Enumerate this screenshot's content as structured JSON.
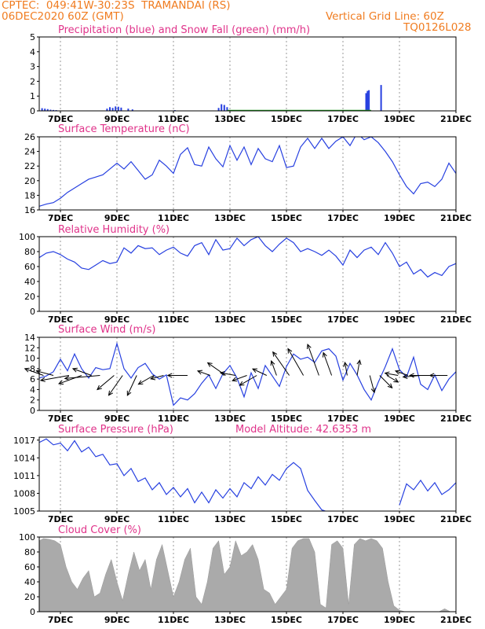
{
  "header": {
    "line1_left": "CPTEC:  049:41W-30:23S  TRAMANDAI (RS)",
    "line2_left": "06DEC2020 60Z (GMT)",
    "line2_right": "Vertical Grid Line: 60Z",
    "line3_right": "TQ0126L028"
  },
  "colors": {
    "header": "#f07c20",
    "titles": "#e0338a",
    "line": "#2740e0",
    "snow": "#20a020",
    "cloud": "#aaaaaa"
  },
  "x_axis": {
    "start_day": 6.25,
    "end_day": 21,
    "tick_days": [
      7,
      9,
      11,
      13,
      15,
      17,
      19,
      21
    ],
    "tick_labels": [
      "7DEC",
      "9DEC",
      "11DEC",
      "13DEC",
      "15DEC",
      "17DEC",
      "19DEC",
      "21DEC"
    ]
  },
  "chart_data": [
    {
      "type": "bar",
      "title": "Precipitation (blue) and Snow Fall (green) (mm/h)",
      "ylim": [
        0,
        5
      ],
      "yticks": [
        0,
        1,
        2,
        3,
        4,
        5
      ],
      "series": [
        {
          "name": "Precipitation",
          "color": "#2740e0",
          "x": [
            6.35,
            6.45,
            6.55,
            6.65,
            6.75,
            6.85,
            8.65,
            8.75,
            8.85,
            8.95,
            9.05,
            9.15,
            9.4,
            9.55,
            11.05,
            12.6,
            12.7,
            12.8,
            12.9,
            17.82,
            17.87,
            17.92,
            18.35
          ],
          "values": [
            0.18,
            0.15,
            0.12,
            0.08,
            0.06,
            0.05,
            0.15,
            0.25,
            0.2,
            0.3,
            0.28,
            0.22,
            0.15,
            0.1,
            0.05,
            0.2,
            0.45,
            0.4,
            0.25,
            1.2,
            1.35,
            1.4,
            1.75
          ]
        },
        {
          "name": "Snow Fall",
          "color": "#20a020",
          "values_all_zero": true
        }
      ]
    },
    {
      "type": "line",
      "title": "Surface Temperature (nC)",
      "ylim": [
        16,
        26
      ],
      "yticks": [
        16,
        18,
        20,
        22,
        24,
        26
      ],
      "x": [
        6.25,
        6.5,
        6.75,
        7.0,
        7.25,
        7.5,
        7.75,
        8.0,
        8.25,
        8.5,
        8.75,
        9.0,
        9.25,
        9.5,
        9.75,
        10.0,
        10.25,
        10.5,
        10.75,
        11.0,
        11.25,
        11.5,
        11.75,
        12.0,
        12.25,
        12.5,
        12.75,
        13.0,
        13.25,
        13.5,
        13.75,
        14.0,
        14.25,
        14.5,
        14.75,
        15.0,
        15.25,
        15.5,
        15.75,
        16.0,
        16.25,
        16.5,
        16.75,
        17.0,
        17.25,
        17.5,
        17.75,
        18.0,
        18.25,
        18.5,
        18.75,
        19.0,
        19.25,
        19.5,
        19.75,
        20.0,
        20.25,
        20.5,
        20.75,
        21.0
      ],
      "values": [
        16.5,
        16.8,
        17.0,
        17.6,
        18.4,
        19.0,
        19.6,
        20.2,
        20.5,
        20.8,
        21.6,
        22.4,
        21.6,
        22.6,
        21.4,
        20.2,
        20.8,
        22.8,
        22.0,
        21.0,
        23.6,
        24.5,
        22.2,
        22.0,
        24.6,
        23.0,
        21.9,
        24.8,
        22.8,
        24.6,
        22.2,
        24.4,
        23.0,
        22.6,
        24.8,
        21.8,
        22.0,
        24.6,
        25.8,
        24.4,
        25.8,
        24.4,
        25.4,
        26.0,
        24.8,
        26.5,
        25.6,
        26.0,
        25.2,
        24.0,
        22.6,
        20.8,
        19.2,
        18.2,
        19.6,
        19.8,
        19.2,
        20.2,
        22.4,
        21.0
      ]
    },
    {
      "type": "line",
      "title": "Relative Humidity (%)",
      "ylim": [
        0,
        100
      ],
      "yticks": [
        0,
        20,
        40,
        60,
        80,
        100
      ],
      "x": [
        6.25,
        6.5,
        6.75,
        7.0,
        7.25,
        7.5,
        7.75,
        8.0,
        8.25,
        8.5,
        8.75,
        9.0,
        9.25,
        9.5,
        9.75,
        10.0,
        10.25,
        10.5,
        10.75,
        11.0,
        11.25,
        11.5,
        11.75,
        12.0,
        12.25,
        12.5,
        12.75,
        13.0,
        13.25,
        13.5,
        13.75,
        14.0,
        14.25,
        14.5,
        14.75,
        15.0,
        15.25,
        15.5,
        15.75,
        16.0,
        16.25,
        16.5,
        16.75,
        17.0,
        17.25,
        17.5,
        17.75,
        18.0,
        18.25,
        18.5,
        18.75,
        19.0,
        19.25,
        19.5,
        19.75,
        20.0,
        20.25,
        20.5,
        20.75,
        21.0
      ],
      "values": [
        72,
        78,
        80,
        76,
        70,
        66,
        58,
        56,
        62,
        68,
        64,
        66,
        85,
        78,
        88,
        84,
        85,
        76,
        82,
        86,
        78,
        74,
        88,
        92,
        76,
        96,
        82,
        84,
        98,
        88,
        96,
        100,
        88,
        80,
        90,
        98,
        92,
        80,
        84,
        80,
        75,
        82,
        74,
        62,
        82,
        72,
        82,
        86,
        76,
        92,
        78,
        60,
        66,
        50,
        56,
        46,
        52,
        48,
        60,
        64
      ]
    },
    {
      "type": "line",
      "title": "Surface Wind (m/s)",
      "ylim": [
        0,
        14
      ],
      "yticks": [
        0,
        2,
        4,
        6,
        8,
        10,
        12,
        14
      ],
      "x": [
        6.25,
        6.5,
        6.75,
        7.0,
        7.25,
        7.5,
        7.75,
        8.0,
        8.25,
        8.5,
        8.75,
        9.0,
        9.25,
        9.5,
        9.75,
        10.0,
        10.25,
        10.5,
        10.75,
        11.0,
        11.25,
        11.5,
        11.75,
        12.0,
        12.25,
        12.5,
        12.75,
        13.0,
        13.25,
        13.5,
        13.75,
        14.0,
        14.25,
        14.5,
        14.75,
        15.0,
        15.25,
        15.5,
        15.75,
        16.0,
        16.25,
        16.5,
        16.75,
        17.0,
        17.25,
        17.5,
        17.75,
        18.0,
        18.25,
        18.5,
        18.75,
        19.0,
        19.25,
        19.5,
        19.75,
        20.0,
        20.25,
        20.5,
        20.75,
        21.0
      ],
      "values": [
        6.2,
        6.6,
        7.4,
        9.8,
        7.6,
        10.8,
        8.0,
        6.2,
        8.2,
        7.8,
        8.0,
        12.8,
        8.0,
        6.2,
        8.2,
        9.0,
        7.0,
        6.0,
        6.8,
        1.0,
        2.4,
        2.0,
        3.2,
        5.2,
        6.8,
        4.2,
        7.0,
        8.6,
        6.2,
        2.6,
        7.2,
        4.2,
        8.6,
        6.6,
        4.6,
        8.4,
        10.8,
        9.8,
        10.2,
        9.2,
        11.4,
        11.8,
        10.4,
        5.8,
        9.0,
        6.8,
        4.0,
        2.0,
        5.4,
        8.4,
        11.8,
        7.8,
        6.4,
        10.2,
        5.0,
        4.0,
        6.8,
        3.8,
        6.0,
        7.4
      ],
      "arrows": [
        {
          "day": 6.4,
          "dir_deg": 200,
          "len": 0.9
        },
        {
          "day": 6.75,
          "dir_deg": 195,
          "len": 0.8
        },
        {
          "day": 7.3,
          "dir_deg": 170,
          "len": 1.3
        },
        {
          "day": 7.75,
          "dir_deg": 160,
          "len": 1.1
        },
        {
          "day": 8.1,
          "dir_deg": 200,
          "len": 0.9
        },
        {
          "day": 8.4,
          "dir_deg": 175,
          "len": 1.6
        },
        {
          "day": 8.9,
          "dir_deg": 140,
          "len": 1.0
        },
        {
          "day": 9.2,
          "dir_deg": 125,
          "len": 1.1
        },
        {
          "day": 9.7,
          "dir_deg": 115,
          "len": 1.0
        },
        {
          "day": 10.3,
          "dir_deg": 150,
          "len": 0.8
        },
        {
          "day": 10.65,
          "dir_deg": 165,
          "len": 0.6
        },
        {
          "day": 11.5,
          "dir_deg": 180,
          "len": 0.9
        },
        {
          "day": 12.3,
          "dir_deg": 200,
          "len": 0.6
        },
        {
          "day": 12.85,
          "dir_deg": 215,
          "len": 1.0
        },
        {
          "day": 13.2,
          "dir_deg": 190,
          "len": 0.7
        },
        {
          "day": 13.6,
          "dir_deg": 160,
          "len": 0.7
        },
        {
          "day": 13.95,
          "dir_deg": 150,
          "len": 0.9
        },
        {
          "day": 14.3,
          "dir_deg": 205,
          "len": 0.7
        },
        {
          "day": 14.65,
          "dir_deg": 250,
          "len": 0.7
        },
        {
          "day": 15.1,
          "dir_deg": 235,
          "len": 1.3
        },
        {
          "day": 15.6,
          "dir_deg": 240,
          "len": 1.4
        },
        {
          "day": 16.15,
          "dir_deg": 250,
          "len": 1.5
        },
        {
          "day": 16.6,
          "dir_deg": 250,
          "len": 1.1
        },
        {
          "day": 17.15,
          "dir_deg": 260,
          "len": 0.6
        },
        {
          "day": 17.5,
          "dir_deg": 280,
          "len": 0.7
        },
        {
          "day": 17.95,
          "dir_deg": 75,
          "len": 0.8
        },
        {
          "day": 18.3,
          "dir_deg": 45,
          "len": 0.8
        },
        {
          "day": 18.55,
          "dir_deg": 30,
          "len": 0.6
        },
        {
          "day": 18.95,
          "dir_deg": 190,
          "len": 0.6
        },
        {
          "day": 19.3,
          "dir_deg": 200,
          "len": 0.6
        },
        {
          "day": 19.75,
          "dir_deg": 175,
          "len": 0.8
        },
        {
          "day": 20.3,
          "dir_deg": 180,
          "len": 1.2
        },
        {
          "day": 20.7,
          "dir_deg": 180,
          "len": 0.8
        }
      ]
    },
    {
      "type": "line",
      "title": "Surface Pressure (hPa)",
      "annotation": "Model Altitude: 42.6353 m",
      "ylim": [
        1005,
        1017.5
      ],
      "yticks": [
        1005,
        1008,
        1011,
        1014,
        1017
      ],
      "x": [
        6.25,
        6.5,
        6.75,
        7.0,
        7.25,
        7.5,
        7.75,
        8.0,
        8.25,
        8.5,
        8.75,
        9.0,
        9.25,
        9.5,
        9.75,
        10.0,
        10.25,
        10.5,
        10.75,
        11.0,
        11.25,
        11.5,
        11.75,
        12.0,
        12.25,
        12.5,
        12.75,
        13.0,
        13.25,
        13.5,
        13.75,
        14.0,
        14.25,
        14.5,
        14.75,
        15.0,
        15.25,
        15.5,
        15.75,
        16.0,
        16.25,
        16.5
      ],
      "values": [
        1016.6,
        1017.2,
        1016.2,
        1016.5,
        1015.2,
        1016.9,
        1015.0,
        1015.8,
        1014.2,
        1014.6,
        1012.8,
        1013.0,
        1011.0,
        1012.2,
        1010.0,
        1010.6,
        1008.6,
        1009.8,
        1007.8,
        1009.0,
        1007.4,
        1008.8,
        1006.4,
        1008.2,
        1006.4,
        1008.6,
        1007.2,
        1008.8,
        1007.4,
        1009.8,
        1008.8,
        1010.8,
        1009.4,
        1011.2,
        1010.2,
        1012.2,
        1013.2,
        1012.2,
        1008.5,
        1006.8,
        1005.2,
        1004.8
      ],
      "x2": [
        19.0,
        19.25,
        19.5,
        19.75,
        20.0,
        20.25,
        20.5,
        20.75,
        21.0
      ],
      "values2": [
        1006.0,
        1009.6,
        1008.6,
        1010.2,
        1008.4,
        1009.8,
        1007.8,
        1008.6,
        1009.8
      ]
    },
    {
      "type": "area",
      "title": "Cloud Cover (%)",
      "ylim": [
        0,
        100
      ],
      "yticks": [
        0,
        20,
        40,
        60,
        80,
        100
      ],
      "x": [
        6.25,
        6.4,
        6.6,
        6.8,
        7.0,
        7.2,
        7.4,
        7.6,
        7.8,
        8.0,
        8.2,
        8.4,
        8.6,
        8.8,
        9.0,
        9.2,
        9.4,
        9.6,
        9.8,
        10.0,
        10.2,
        10.4,
        10.6,
        10.8,
        11.0,
        11.2,
        11.4,
        11.6,
        11.8,
        12.0,
        12.2,
        12.4,
        12.6,
        12.8,
        13.0,
        13.2,
        13.4,
        13.6,
        13.8,
        14.0,
        14.2,
        14.4,
        14.6,
        14.8,
        15.0,
        15.2,
        15.4,
        15.6,
        15.8,
        16.0,
        16.2,
        16.4,
        16.6,
        16.8,
        17.0,
        17.2,
        17.4,
        17.6,
        17.8,
        18.0,
        18.2,
        18.4,
        18.6,
        18.8,
        19.0,
        19.2,
        19.4,
        19.6,
        19.8,
        20.0,
        20.2,
        20.4,
        20.6,
        20.8,
        21.0
      ],
      "values": [
        95,
        98,
        97,
        95,
        90,
        60,
        40,
        30,
        45,
        55,
        20,
        25,
        50,
        70,
        40,
        15,
        50,
        80,
        55,
        70,
        30,
        70,
        90,
        55,
        20,
        40,
        70,
        85,
        20,
        10,
        40,
        85,
        95,
        50,
        60,
        95,
        75,
        80,
        90,
        70,
        30,
        25,
        10,
        20,
        30,
        85,
        95,
        98,
        98,
        80,
        10,
        5,
        90,
        95,
        85,
        10,
        90,
        98,
        95,
        98,
        95,
        85,
        40,
        8,
        2,
        0,
        0,
        0,
        0,
        0,
        0,
        0,
        4,
        0,
        0
      ]
    }
  ]
}
